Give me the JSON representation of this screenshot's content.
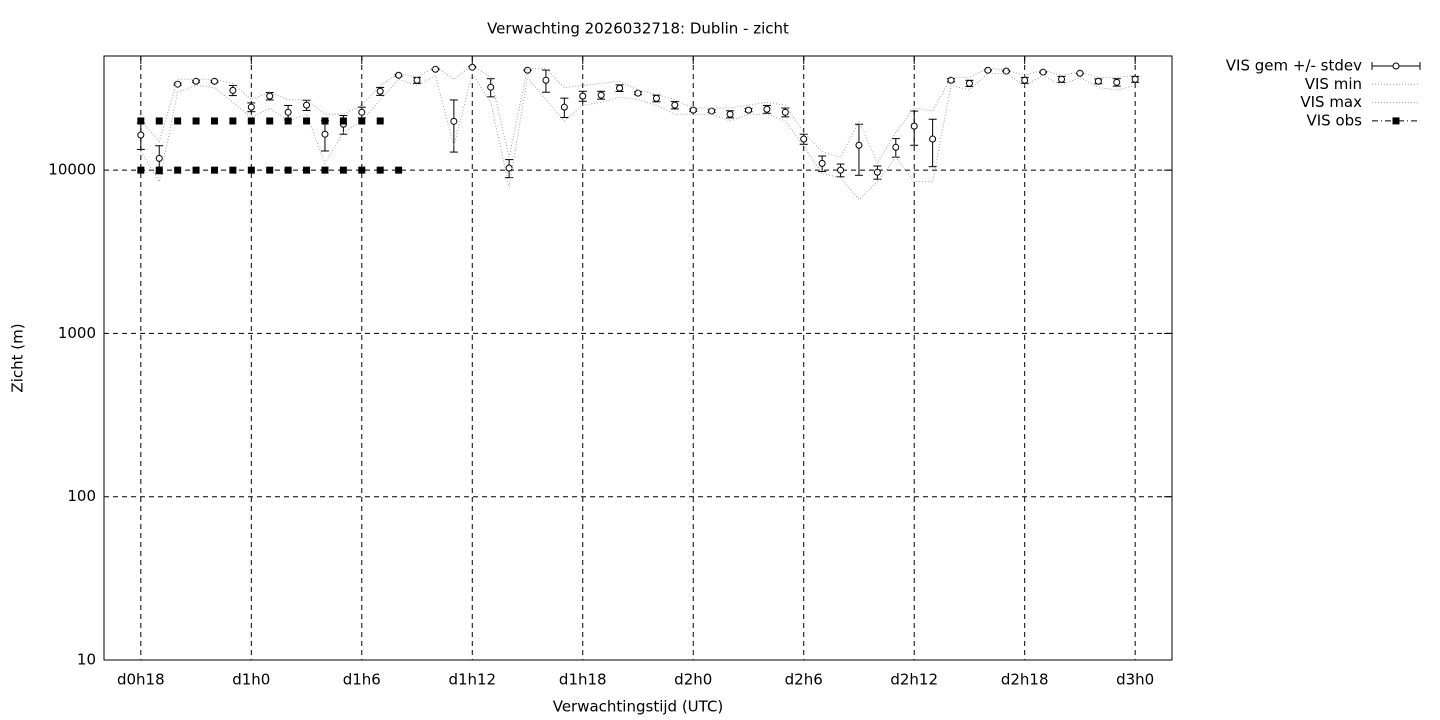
{
  "chart_data": {
    "type": "line",
    "title": "Verwachting 2026032718: Dublin - zicht",
    "x_label": "Verwachtingstijd (UTC)",
    "y_label": "Zicht (m)",
    "xlim": [
      16,
      74
    ],
    "ylim": [
      10,
      50000
    ],
    "log_y": true,
    "grid": true,
    "legend": "outside-right-top",
    "xticks": [
      {
        "value": 18,
        "label": "d0h18"
      },
      {
        "value": 24,
        "label": "d1h0"
      },
      {
        "value": 30,
        "label": "d1h6"
      },
      {
        "value": 36,
        "label": "d1h12"
      },
      {
        "value": 42,
        "label": "d1h18"
      },
      {
        "value": 48,
        "label": "d2h0"
      },
      {
        "value": 54,
        "label": "d2h6"
      },
      {
        "value": 60,
        "label": "d2h12"
      },
      {
        "value": 66,
        "label": "d2h18"
      },
      {
        "value": 72,
        "label": "d3h0"
      }
    ],
    "yticks": [
      10,
      100,
      1000,
      10000
    ],
    "x": [
      18,
      19,
      20,
      21,
      22,
      23,
      24,
      25,
      26,
      27,
      28,
      29,
      30,
      31,
      32,
      33,
      34,
      35,
      36,
      37,
      38,
      39,
      40,
      41,
      42,
      43,
      44,
      45,
      46,
      47,
      48,
      49,
      50,
      51,
      52,
      53,
      54,
      55,
      56,
      57,
      58,
      59,
      60,
      61,
      62,
      63,
      64,
      65,
      66,
      67,
      68,
      69,
      70,
      71,
      72
    ],
    "series": [
      {
        "name": "VIS gem +/- stdev",
        "color": "#000000",
        "style": "errorbars",
        "values": [
          16400,
          11800,
          33600,
          35000,
          35000,
          30800,
          24300,
          28400,
          22600,
          25000,
          16600,
          19100,
          22600,
          30400,
          38100,
          35500,
          41500,
          19900,
          42700,
          32200,
          10300,
          40900,
          35500,
          24300,
          28400,
          28800,
          31800,
          29600,
          27500,
          25000,
          23300,
          23000,
          22000,
          23300,
          23600,
          22600,
          15500,
          11000,
          10000,
          14200,
          9700,
          13800,
          18600,
          15500,
          35500,
          34000,
          40900,
          40400,
          35500,
          39800,
          36000,
          39200,
          35000,
          34500,
          36000
        ],
        "errors": [
          3000,
          2300,
          500,
          500,
          500,
          2200,
          1500,
          1500,
          2300,
          1800,
          3500,
          2500,
          1700,
          1700,
          500,
          1500,
          300,
          7000,
          300,
          4100,
          1300,
          300,
          5500,
          3300,
          2000,
          1600,
          1500,
          600,
          1300,
          1300,
          400,
          400,
          1100,
          500,
          1300,
          1400,
          1100,
          1200,
          900,
          4900,
          900,
          1800,
          4400,
          5000,
          800,
          1500,
          300,
          300,
          1500,
          300,
          1500,
          300,
          1200,
          1800,
          1500
        ]
      },
      {
        "name": "VIS min",
        "color": "#a0a0a0",
        "style": "dotted",
        "values": [
          13000,
          8500,
          30000,
          33000,
          32000,
          26000,
          21000,
          24000,
          20000,
          22000,
          11000,
          17000,
          20000,
          27000,
          36000,
          33000,
          38000,
          14000,
          39000,
          26000,
          7900,
          37000,
          27000,
          20000,
          25000,
          26000,
          28000,
          27000,
          25000,
          22000,
          22000,
          22000,
          20000,
          22000,
          22000,
          20000,
          14000,
          9500,
          9000,
          6600,
          8500,
          12000,
          8500,
          8500,
          33000,
          31000,
          39000,
          39000,
          33000,
          38000,
          33000,
          37000,
          32000,
          31000,
          33000
        ]
      },
      {
        "name": "VIS max",
        "color": "#a0a0a0",
        "style": "dotted",
        "values": [
          20000,
          15000,
          36000,
          36000,
          36000,
          34000,
          27000,
          30000,
          27000,
          27000,
          22000,
          22000,
          25000,
          33000,
          39000,
          37000,
          43000,
          36000,
          44000,
          37000,
          12000,
          42000,
          42000,
          32000,
          33000,
          34000,
          35000,
          31000,
          29000,
          27000,
          24000,
          24000,
          24000,
          25000,
          26000,
          25000,
          17000,
          13000,
          12000,
          20000,
          11000,
          17000,
          24000,
          23000,
          37000,
          37000,
          42000,
          41000,
          38000,
          41000,
          38000,
          40000,
          37000,
          37000,
          38000
        ]
      },
      {
        "name": "VIS obs",
        "color": "#000000",
        "style": "points",
        "x": [
          18,
          19,
          20,
          21,
          22,
          23,
          24,
          25,
          26,
          27,
          28,
          29,
          30,
          31,
          18,
          19,
          20,
          21,
          22,
          23,
          24,
          25,
          26,
          27,
          28,
          29,
          30,
          31,
          32
        ],
        "values": [
          20000,
          20000,
          20000,
          20000,
          20000,
          20000,
          20000,
          20000,
          20000,
          20000,
          20000,
          20000,
          20000,
          20000,
          10000,
          10000,
          10000,
          10000,
          10000,
          10000,
          10000,
          10000,
          10000,
          10000,
          10000,
          10000,
          10000,
          10000,
          10000
        ]
      }
    ]
  }
}
